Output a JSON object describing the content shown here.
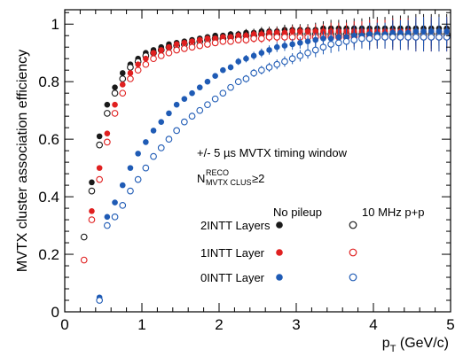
{
  "chart_data": {
    "type": "scatter",
    "xlabel": "p",
    "xlabel_sub": "T",
    "xlabel_unit": " (GeV/c)",
    "ylabel": "MVTX cluster association efficiency",
    "xlim": [
      0,
      5
    ],
    "ylim": [
      0,
      1.05
    ],
    "x_ticks": [
      "0",
      "1",
      "2",
      "3",
      "4",
      "5"
    ],
    "y_ticks": [
      "0",
      "0.2",
      "0.4",
      "0.6",
      "0.8",
      "1"
    ],
    "grid": false,
    "annotations": {
      "timing": "+/- 5 µs MVTX timing window",
      "n_main": "N",
      "n_sup": "RECO",
      "n_sub": "MVTX CLUS",
      "n_rest": "≥2",
      "col_nopileup": "No pileup",
      "col_pileup": "10 MHz p+p"
    },
    "series": [
      {
        "name": "2INTT Layers",
        "variant": "No pileup",
        "color": "#1a1a1a",
        "filled": true,
        "x": [
          0.25,
          0.35,
          0.45,
          0.55,
          0.65,
          0.75,
          0.85,
          0.95,
          1.05,
          1.15,
          1.25,
          1.35,
          1.45,
          1.55,
          1.65,
          1.75,
          1.85,
          1.95,
          2.05,
          2.15,
          2.25,
          2.35,
          2.45,
          2.55,
          2.65,
          2.75,
          2.85,
          2.95,
          3.05,
          3.15,
          3.25,
          3.35,
          3.45,
          3.55,
          3.65,
          3.75,
          3.85,
          3.95,
          4.05,
          4.15,
          4.25,
          4.35,
          4.45,
          4.55,
          4.65,
          4.75,
          4.85,
          4.95
        ],
        "y": [
          0.26,
          0.45,
          0.61,
          0.72,
          0.78,
          0.83,
          0.86,
          0.88,
          0.9,
          0.91,
          0.92,
          0.93,
          0.935,
          0.94,
          0.945,
          0.95,
          0.955,
          0.96,
          0.96,
          0.965,
          0.965,
          0.97,
          0.97,
          0.975,
          0.975,
          0.975,
          0.98,
          0.98,
          0.98,
          0.98,
          0.98,
          0.985,
          0.985,
          0.985,
          0.985,
          0.985,
          0.985,
          0.985,
          0.985,
          0.985,
          0.985,
          0.985,
          0.985,
          0.985,
          0.985,
          0.985,
          0.985,
          0.985
        ],
        "err": [
          0.005,
          0.005,
          0.005,
          0.005,
          0.005,
          0.005,
          0.005,
          0.005,
          0.005,
          0.005,
          0.006,
          0.006,
          0.006,
          0.007,
          0.007,
          0.008,
          0.008,
          0.009,
          0.01,
          0.011,
          0.012,
          0.013,
          0.014,
          0.015,
          0.016,
          0.017,
          0.018,
          0.019,
          0.02,
          0.02,
          0.025,
          0.025,
          0.03,
          0.03,
          0.03,
          0.035,
          0.035,
          0.04,
          0.04,
          0.04,
          0.045,
          0.045,
          0.045,
          0.05,
          0.05,
          0.05,
          0.05,
          0.05
        ]
      },
      {
        "name": "2INTT Layers",
        "variant": "10 MHz p+p",
        "color": "#1a1a1a",
        "filled": false,
        "x": [
          0.25,
          0.35,
          0.45,
          0.55,
          0.65,
          0.75,
          0.85,
          0.95,
          1.05,
          1.15,
          1.25,
          1.35,
          1.45,
          1.55,
          1.65,
          1.75,
          1.85,
          1.95,
          2.05,
          2.15,
          2.25,
          2.35,
          2.45,
          2.55,
          2.65,
          2.75,
          2.85,
          2.95,
          3.05,
          3.15,
          3.25,
          3.35,
          3.45,
          3.55,
          3.65,
          3.75,
          3.85,
          3.95,
          4.05,
          4.15,
          4.25,
          4.35,
          4.45,
          4.55,
          4.65,
          4.75,
          4.85,
          4.95
        ],
        "y": [
          0.26,
          0.42,
          0.58,
          0.69,
          0.76,
          0.81,
          0.85,
          0.87,
          0.89,
          0.9,
          0.91,
          0.92,
          0.925,
          0.93,
          0.935,
          0.94,
          0.945,
          0.95,
          0.95,
          0.955,
          0.955,
          0.96,
          0.96,
          0.965,
          0.965,
          0.965,
          0.965,
          0.965,
          0.965,
          0.965,
          0.965,
          0.965,
          0.965,
          0.965,
          0.965,
          0.965,
          0.965,
          0.965,
          0.965,
          0.965,
          0.965,
          0.965,
          0.965,
          0.965,
          0.965,
          0.965,
          0.965,
          0.965
        ],
        "err": [
          0.005,
          0.005,
          0.005,
          0.005,
          0.005,
          0.005,
          0.005,
          0.005,
          0.005,
          0.005,
          0.006,
          0.006,
          0.006,
          0.007,
          0.007,
          0.008,
          0.008,
          0.009,
          0.01,
          0.011,
          0.012,
          0.013,
          0.014,
          0.015,
          0.016,
          0.017,
          0.018,
          0.019,
          0.02,
          0.02,
          0.025,
          0.025,
          0.03,
          0.03,
          0.03,
          0.035,
          0.035,
          0.04,
          0.04,
          0.04,
          0.045,
          0.045,
          0.045,
          0.05,
          0.05,
          0.05,
          0.05,
          0.05
        ]
      },
      {
        "name": "1INTT Layer",
        "variant": "No pileup",
        "color": "#e02020",
        "filled": true,
        "x": [
          0.25,
          0.35,
          0.45,
          0.55,
          0.65,
          0.75,
          0.85,
          0.95,
          1.05,
          1.15,
          1.25,
          1.35,
          1.45,
          1.55,
          1.65,
          1.75,
          1.85,
          1.95,
          2.05,
          2.15,
          2.25,
          2.35,
          2.45,
          2.55,
          2.65,
          2.75,
          2.85,
          2.95,
          3.05,
          3.15,
          3.25,
          3.35,
          3.45,
          3.55,
          3.65,
          3.75,
          3.85,
          3.95,
          4.05,
          4.15,
          4.25,
          4.35,
          4.45,
          4.55,
          4.65,
          4.75,
          4.85,
          4.95
        ],
        "y": [
          0.18,
          0.35,
          0.5,
          0.62,
          0.72,
          0.79,
          0.83,
          0.86,
          0.88,
          0.9,
          0.91,
          0.92,
          0.93,
          0.935,
          0.94,
          0.945,
          0.95,
          0.95,
          0.955,
          0.955,
          0.96,
          0.96,
          0.965,
          0.965,
          0.97,
          0.97,
          0.97,
          0.975,
          0.975,
          0.975,
          0.975,
          0.975,
          0.975,
          0.975,
          0.975,
          0.975,
          0.975,
          0.975,
          0.975,
          0.975,
          0.975,
          0.975,
          0.975,
          0.975,
          0.975,
          0.975,
          0.975,
          0.975
        ],
        "err": [
          0.005,
          0.005,
          0.005,
          0.005,
          0.005,
          0.005,
          0.005,
          0.005,
          0.005,
          0.005,
          0.006,
          0.006,
          0.006,
          0.007,
          0.007,
          0.008,
          0.008,
          0.009,
          0.01,
          0.011,
          0.012,
          0.013,
          0.014,
          0.015,
          0.016,
          0.017,
          0.018,
          0.019,
          0.02,
          0.02,
          0.025,
          0.025,
          0.03,
          0.03,
          0.03,
          0.035,
          0.035,
          0.04,
          0.04,
          0.04,
          0.045,
          0.045,
          0.045,
          0.05,
          0.05,
          0.05,
          0.05,
          0.05
        ]
      },
      {
        "name": "1INTT Layer",
        "variant": "10 MHz p+p",
        "color": "#e02020",
        "filled": false,
        "x": [
          0.25,
          0.35,
          0.45,
          0.55,
          0.65,
          0.75,
          0.85,
          0.95,
          1.05,
          1.15,
          1.25,
          1.35,
          1.45,
          1.55,
          1.65,
          1.75,
          1.85,
          1.95,
          2.05,
          2.15,
          2.25,
          2.35,
          2.45,
          2.55,
          2.65,
          2.75,
          2.85,
          2.95,
          3.05,
          3.15,
          3.25,
          3.35,
          3.45,
          3.55,
          3.65,
          3.75,
          3.85,
          3.95,
          4.05,
          4.15,
          4.25,
          4.35,
          4.45,
          4.55,
          4.65,
          4.75,
          4.85,
          4.95
        ],
        "y": [
          0.18,
          0.32,
          0.46,
          0.59,
          0.69,
          0.76,
          0.81,
          0.84,
          0.86,
          0.88,
          0.89,
          0.9,
          0.91,
          0.915,
          0.92,
          0.925,
          0.93,
          0.935,
          0.94,
          0.94,
          0.945,
          0.945,
          0.95,
          0.95,
          0.955,
          0.955,
          0.955,
          0.955,
          0.955,
          0.955,
          0.955,
          0.955,
          0.955,
          0.955,
          0.955,
          0.955,
          0.955,
          0.955,
          0.955,
          0.955,
          0.955,
          0.955,
          0.955,
          0.955,
          0.955,
          0.955,
          0.955,
          0.955
        ],
        "err": [
          0.005,
          0.005,
          0.005,
          0.005,
          0.005,
          0.005,
          0.005,
          0.005,
          0.005,
          0.005,
          0.006,
          0.006,
          0.006,
          0.007,
          0.007,
          0.008,
          0.008,
          0.009,
          0.01,
          0.011,
          0.012,
          0.013,
          0.014,
          0.015,
          0.016,
          0.017,
          0.018,
          0.019,
          0.02,
          0.02,
          0.025,
          0.025,
          0.03,
          0.03,
          0.03,
          0.035,
          0.035,
          0.04,
          0.04,
          0.04,
          0.045,
          0.045,
          0.045,
          0.05,
          0.05,
          0.05,
          0.05,
          0.05
        ]
      },
      {
        "name": "0INTT Layer",
        "variant": "No pileup",
        "color": "#1f5bb5",
        "filled": true,
        "x": [
          0.45,
          0.55,
          0.65,
          0.75,
          0.85,
          0.95,
          1.05,
          1.15,
          1.25,
          1.35,
          1.45,
          1.55,
          1.65,
          1.75,
          1.85,
          1.95,
          2.05,
          2.15,
          2.25,
          2.35,
          2.45,
          2.55,
          2.65,
          2.75,
          2.85,
          2.95,
          3.05,
          3.15,
          3.25,
          3.35,
          3.45,
          3.55,
          3.65,
          3.75,
          3.85,
          3.95,
          4.05,
          4.15,
          4.25,
          4.35,
          4.45,
          4.55,
          4.65,
          4.75,
          4.85,
          4.95
        ],
        "y": [
          0.05,
          0.33,
          0.38,
          0.44,
          0.5,
          0.55,
          0.59,
          0.63,
          0.66,
          0.69,
          0.72,
          0.74,
          0.76,
          0.78,
          0.8,
          0.82,
          0.84,
          0.85,
          0.87,
          0.88,
          0.89,
          0.9,
          0.91,
          0.92,
          0.925,
          0.93,
          0.935,
          0.94,
          0.945,
          0.95,
          0.95,
          0.955,
          0.955,
          0.96,
          0.96,
          0.965,
          0.965,
          0.965,
          0.97,
          0.97,
          0.97,
          0.975,
          0.975,
          0.975,
          0.975,
          0.975
        ],
        "err": [
          0.005,
          0.005,
          0.005,
          0.005,
          0.005,
          0.005,
          0.005,
          0.005,
          0.006,
          0.006,
          0.006,
          0.007,
          0.007,
          0.008,
          0.008,
          0.009,
          0.01,
          0.011,
          0.012,
          0.013,
          0.014,
          0.015,
          0.016,
          0.017,
          0.018,
          0.019,
          0.02,
          0.02,
          0.025,
          0.025,
          0.03,
          0.03,
          0.03,
          0.035,
          0.035,
          0.04,
          0.04,
          0.04,
          0.045,
          0.045,
          0.045,
          0.05,
          0.05,
          0.05,
          0.05,
          0.05
        ]
      },
      {
        "name": "0INTT Layer",
        "variant": "10 MHz p+p",
        "color": "#1f5bb5",
        "filled": false,
        "x": [
          0.45,
          0.55,
          0.65,
          0.75,
          0.85,
          0.95,
          1.05,
          1.15,
          1.25,
          1.35,
          1.45,
          1.55,
          1.65,
          1.75,
          1.85,
          1.95,
          2.05,
          2.15,
          2.25,
          2.35,
          2.45,
          2.55,
          2.65,
          2.75,
          2.85,
          2.95,
          3.05,
          3.15,
          3.25,
          3.35,
          3.45,
          3.55,
          3.65,
          3.75,
          3.85,
          3.95,
          4.05,
          4.15,
          4.25,
          4.35,
          4.45,
          4.55,
          4.65,
          4.75,
          4.85,
          4.95
        ],
        "y": [
          0.04,
          0.3,
          0.33,
          0.37,
          0.42,
          0.46,
          0.5,
          0.54,
          0.57,
          0.6,
          0.63,
          0.66,
          0.68,
          0.7,
          0.72,
          0.74,
          0.76,
          0.78,
          0.8,
          0.81,
          0.83,
          0.84,
          0.85,
          0.86,
          0.87,
          0.88,
          0.89,
          0.9,
          0.91,
          0.92,
          0.93,
          0.935,
          0.94,
          0.945,
          0.95,
          0.95,
          0.955,
          0.955,
          0.955,
          0.955,
          0.955,
          0.955,
          0.955,
          0.955,
          0.955,
          0.955
        ],
        "err": [
          0.005,
          0.005,
          0.005,
          0.005,
          0.005,
          0.005,
          0.005,
          0.005,
          0.006,
          0.006,
          0.006,
          0.007,
          0.007,
          0.008,
          0.008,
          0.009,
          0.01,
          0.011,
          0.012,
          0.013,
          0.014,
          0.015,
          0.016,
          0.017,
          0.018,
          0.019,
          0.02,
          0.02,
          0.025,
          0.025,
          0.03,
          0.03,
          0.03,
          0.035,
          0.035,
          0.04,
          0.04,
          0.04,
          0.045,
          0.045,
          0.045,
          0.05,
          0.05,
          0.05,
          0.05,
          0.05
        ]
      }
    ],
    "legend": {
      "placement": "lower-center",
      "rows": [
        {
          "label": "2INTT Layers",
          "color": "#1a1a1a"
        },
        {
          "label": "1INTT Layer",
          "color": "#e02020"
        },
        {
          "label": "0INTT Layer",
          "color": "#1f5bb5"
        }
      ]
    }
  }
}
